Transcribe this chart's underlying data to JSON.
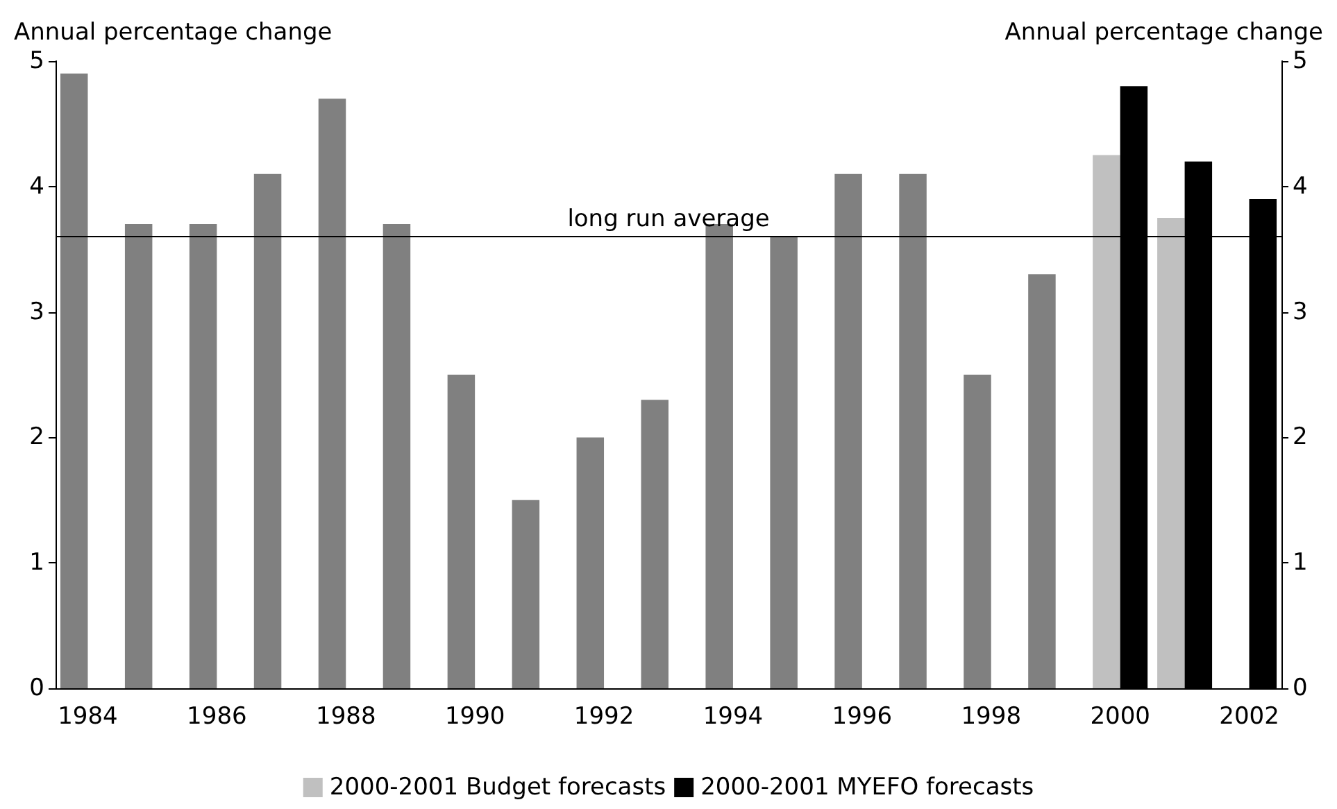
{
  "chart_data": {
    "type": "bar",
    "ylabel": "Annual percentage change",
    "y2label": "Annual percentage change",
    "categories": [
      "1984",
      null,
      "1986",
      null,
      "1988",
      null,
      "1990",
      null,
      "1992",
      null,
      "1994",
      null,
      "1996",
      null,
      "1998",
      null,
      "2000",
      null,
      "2002"
    ],
    "series": [
      {
        "color": "#808080",
        "values": [
          4.9,
          3.7,
          3.7,
          4.1,
          4.7,
          3.7,
          2.5,
          1.5,
          2.0,
          2.3,
          3.7,
          3.6,
          4.1,
          4.1,
          2.5,
          3.3,
          null,
          null,
          null
        ]
      },
      {
        "name": "2000-2001 Budget forecasts",
        "color": "#c0c0c0",
        "values": [
          null,
          null,
          null,
          null,
          null,
          null,
          null,
          null,
          null,
          null,
          null,
          null,
          null,
          null,
          null,
          null,
          4.25,
          3.75,
          null
        ]
      },
      {
        "name": "2000-2001 MYEFO forecasts",
        "color": "#000000",
        "values": [
          null,
          null,
          null,
          null,
          null,
          null,
          null,
          null,
          null,
          null,
          null,
          null,
          null,
          null,
          null,
          null,
          4.8,
          4.2,
          3.9
        ]
      }
    ],
    "ylim": [
      0,
      5
    ],
    "yticks": [
      0,
      1,
      2,
      3,
      4,
      5
    ],
    "y2lim": [
      0,
      5
    ],
    "y2ticks": [
      0,
      1,
      2,
      3,
      4,
      5
    ],
    "ref_lines": [
      {
        "axis": "y",
        "value": 3.6,
        "label": "long run average",
        "color": "#000000"
      }
    ],
    "grid": false,
    "legend": "bottom"
  }
}
